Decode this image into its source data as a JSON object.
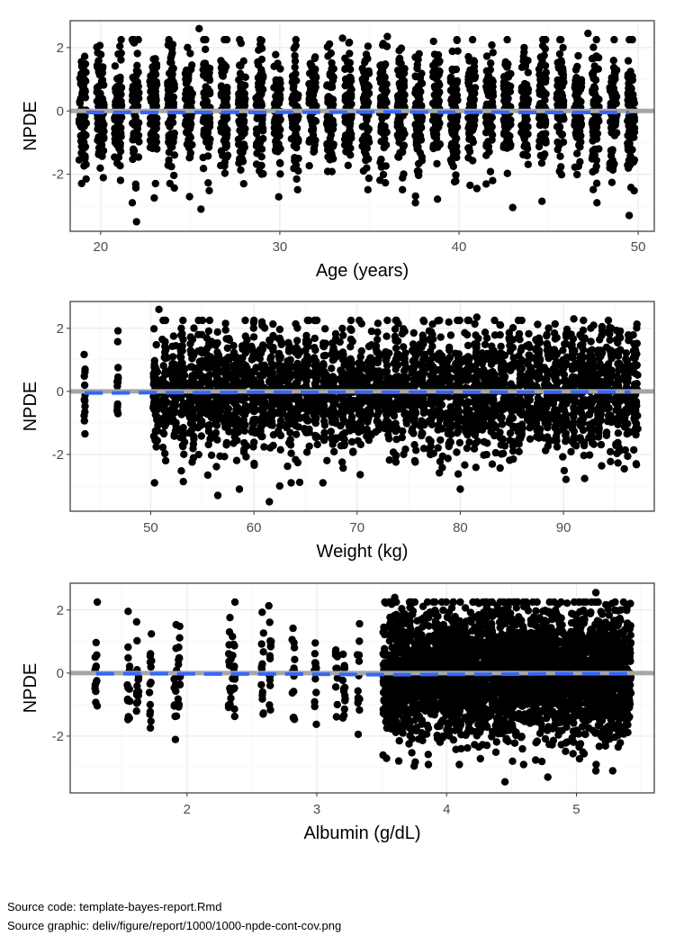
{
  "chart_data": [
    {
      "type": "scatter",
      "xlabel": "Age (years)",
      "ylabel": "NPDE",
      "x_ticks": [
        20,
        30,
        40,
        50
      ],
      "y_ticks": [
        -2,
        0,
        2
      ],
      "xlim": [
        18.3,
        50.9
      ],
      "ylim": [
        -3.8,
        2.85
      ],
      "grid": true,
      "reference_line": 0,
      "x_range": [
        19,
        49.6
      ],
      "jitter": 0.2,
      "groups": 32,
      "points_per_group": 75,
      "edge_points": [
        [
          22,
          -3.5
        ],
        [
          25.6,
          -3.1
        ],
        [
          25.5,
          2.6
        ],
        [
          43,
          -3.05
        ],
        [
          49.5,
          -3.3
        ],
        [
          47.2,
          2.45
        ],
        [
          36,
          2.35
        ],
        [
          41,
          -2.45
        ],
        [
          33.5,
          2.3
        ]
      ],
      "trend": [
        [
          19.2,
          -0.05
        ],
        [
          21,
          -0.05
        ],
        [
          23,
          -0.05
        ],
        [
          25,
          -0.05
        ],
        [
          27,
          -0.04
        ],
        [
          29,
          -0.05
        ],
        [
          31,
          -0.04
        ],
        [
          34,
          -0.04
        ],
        [
          36,
          -0.03
        ],
        [
          39,
          -0.04
        ],
        [
          42,
          -0.04
        ],
        [
          44,
          -0.05
        ],
        [
          47,
          -0.05
        ],
        [
          49.5,
          -0.05
        ]
      ]
    },
    {
      "type": "scatter",
      "xlabel": "Weight (kg)",
      "ylabel": "NPDE",
      "x_ticks": [
        50,
        60,
        70,
        80,
        90
      ],
      "y_ticks": [
        -2,
        0,
        2
      ],
      "xlim": [
        42.2,
        98.8
      ],
      "ylim": [
        -3.8,
        2.85
      ],
      "grid": true,
      "reference_line": 0,
      "x_range": [
        50.5,
        97
      ],
      "extra_columns": [
        43.6,
        46.8,
        56.4
      ],
      "jitter": 0.25,
      "groups": 55,
      "points_per_group": 60,
      "edge_points": [
        [
          50.8,
          2.6
        ],
        [
          56.5,
          -3.3
        ],
        [
          61.5,
          -3.5
        ],
        [
          62.5,
          -3.0
        ],
        [
          58.6,
          -3.1
        ],
        [
          80,
          -3.1
        ],
        [
          91,
          2.3
        ],
        [
          81.6,
          2.35
        ]
      ],
      "trend": [
        [
          43.6,
          -0.05
        ],
        [
          47,
          -0.05
        ],
        [
          50,
          -0.04
        ],
        [
          53,
          -0.04
        ],
        [
          56,
          -0.04
        ],
        [
          60,
          -0.03
        ],
        [
          64,
          -0.03
        ],
        [
          68,
          -0.03
        ],
        [
          72,
          -0.03
        ],
        [
          76,
          -0.03
        ],
        [
          80,
          -0.03
        ],
        [
          84,
          -0.03
        ],
        [
          88,
          -0.03
        ],
        [
          92,
          -0.02
        ],
        [
          96.5,
          -0.02
        ]
      ]
    },
    {
      "type": "scatter",
      "xlabel": "Albumin (g/dL)",
      "ylabel": "NPDE",
      "x_ticks": [
        2,
        3,
        4,
        5
      ],
      "y_ticks": [
        -2,
        0,
        2
      ],
      "xlim": [
        1.1,
        5.6
      ],
      "ylim": [
        -3.8,
        2.85
      ],
      "grid": true,
      "reference_line": 0,
      "sparse_columns": [
        1.3,
        1.55,
        1.62,
        1.72,
        1.91,
        1.94,
        2.33,
        2.36,
        2.58,
        2.64,
        2.82,
        2.99,
        3.15,
        3.21,
        3.32
      ],
      "dense_range": [
        3.53,
        5.4
      ],
      "jitter": 0.02,
      "groups": 40,
      "points_per_group": 80,
      "edge_points": [
        [
          3.6,
          2.4
        ],
        [
          3.75,
          -2.95
        ],
        [
          4.45,
          -3.45
        ],
        [
          4.78,
          -3.3
        ],
        [
          5.15,
          -3.1
        ],
        [
          5.28,
          -3.1
        ],
        [
          5.15,
          2.55
        ],
        [
          3.51,
          -2.6
        ]
      ],
      "trend": [
        [
          1.3,
          -0.02
        ],
        [
          1.6,
          -0.02
        ],
        [
          1.9,
          -0.02
        ],
        [
          2.2,
          -0.03
        ],
        [
          2.5,
          -0.03
        ],
        [
          2.8,
          -0.03
        ],
        [
          3.1,
          -0.04
        ],
        [
          3.4,
          -0.05
        ],
        [
          3.7,
          -0.05
        ],
        [
          4.0,
          -0.04
        ],
        [
          4.3,
          -0.04
        ],
        [
          4.6,
          -0.03
        ],
        [
          4.9,
          -0.02
        ],
        [
          5.2,
          -0.02
        ],
        [
          5.4,
          -0.02
        ]
      ]
    }
  ],
  "captions": {
    "source_code": "Source code: template-bayes-report.Rmd",
    "source_graphic": "Source graphic: deliv/figure/report/1000/1000-npde-cont-cov.png"
  },
  "colors": {
    "points": "#000000",
    "reference_line": "#a6a6a6",
    "trend": "#3366ff",
    "grid_major": "#ebebeb",
    "grid_minor": "#f4f4f4",
    "panel_border": "#333333"
  }
}
